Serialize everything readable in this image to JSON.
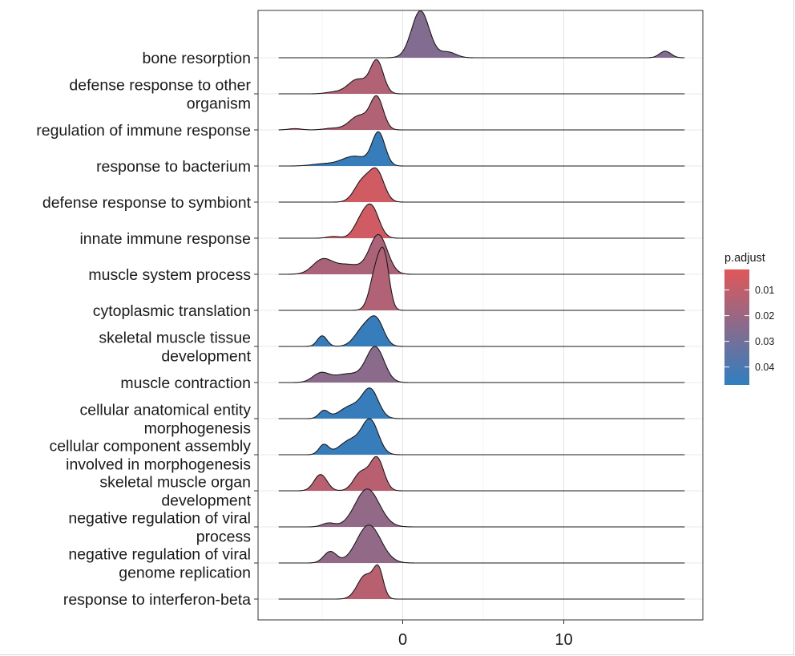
{
  "chart_data": {
    "type": "ridgeline",
    "xlim": [
      -8,
      18.5
    ],
    "x_ticks": [
      0,
      10
    ],
    "x_tick_labels": [
      "0",
      "10"
    ],
    "grid": true,
    "legend": {
      "title": "p.adjust",
      "position": "right",
      "domain": [
        0.002,
        0.047
      ],
      "ticks": [
        0.01,
        0.02,
        0.03,
        0.04
      ],
      "tick_labels": [
        "0.01",
        "0.02",
        "0.03",
        "0.04"
      ],
      "colors": [
        "#e15759",
        "#2f7fc1"
      ]
    },
    "series": [
      {
        "name": "response to interferon-beta",
        "label_lines": [
          "response to interferon-beta"
        ],
        "p_adjust": 0.012,
        "x_range": [
          -7.7,
          17.5
        ],
        "peak_scale": 0.95,
        "components": [
          [
            -2.3,
            0.5,
            0.9
          ],
          [
            -1.5,
            0.3,
            1.0
          ]
        ]
      },
      {
        "name": "negative regulation of viral genome replication",
        "label_lines": [
          "negative regulation of viral",
          "genome replication"
        ],
        "p_adjust": 0.022,
        "x_range": [
          -7.7,
          17.5
        ],
        "peak_scale": 1.05,
        "components": [
          [
            -4.5,
            0.4,
            0.3
          ],
          [
            -2.1,
            0.75,
            1.0
          ]
        ]
      },
      {
        "name": "negative regulation of viral process",
        "label_lines": [
          "negative regulation of viral",
          "process"
        ],
        "p_adjust": 0.022,
        "x_range": [
          -7.7,
          17.5
        ],
        "peak_scale": 1.05,
        "components": [
          [
            -4.6,
            0.4,
            0.1
          ],
          [
            -2.2,
            0.75,
            1.0
          ]
        ]
      },
      {
        "name": "skeletal muscle organ development",
        "label_lines": [
          "skeletal muscle organ",
          "development"
        ],
        "p_adjust": 0.012,
        "x_range": [
          -7.7,
          17.5
        ],
        "peak_scale": 0.95,
        "components": [
          [
            -5.1,
            0.4,
            0.5
          ],
          [
            -2.6,
            0.45,
            0.55
          ],
          [
            -1.6,
            0.42,
            1.0
          ]
        ]
      },
      {
        "name": "cellular component assembly involved in morphogenesis",
        "label_lines": [
          "cellular component assembly",
          "involved in morphogenesis"
        ],
        "p_adjust": 0.045,
        "x_range": [
          -7.7,
          17.5
        ],
        "peak_scale": 1.0,
        "components": [
          [
            -4.9,
            0.3,
            0.3
          ],
          [
            -3.2,
            0.7,
            0.45
          ],
          [
            -2.0,
            0.5,
            1.0
          ]
        ]
      },
      {
        "name": "cellular anatomical entity morphogenesis",
        "label_lines": [
          "cellular anatomical entity",
          "morphogenesis"
        ],
        "p_adjust": 0.045,
        "x_range": [
          -7.7,
          17.5
        ],
        "peak_scale": 0.85,
        "components": [
          [
            -4.9,
            0.3,
            0.28
          ],
          [
            -3.2,
            0.7,
            0.45
          ],
          [
            -2.0,
            0.5,
            1.0
          ]
        ]
      },
      {
        "name": "muscle contraction",
        "label_lines": [
          "muscle contraction"
        ],
        "p_adjust": 0.024,
        "x_range": [
          -7.7,
          17.5
        ],
        "peak_scale": 1.0,
        "components": [
          [
            -5.1,
            0.5,
            0.25
          ],
          [
            -3.4,
            0.9,
            0.25
          ],
          [
            -1.7,
            0.55,
            1.0
          ]
        ]
      },
      {
        "name": "skeletal muscle tissue development",
        "label_lines": [
          "skeletal muscle tissue",
          "development"
        ],
        "p_adjust": 0.045,
        "x_range": [
          -7.7,
          17.5
        ],
        "peak_scale": 0.85,
        "components": [
          [
            -5.0,
            0.3,
            0.35
          ],
          [
            -2.4,
            0.55,
            0.6
          ],
          [
            -1.6,
            0.45,
            0.75
          ]
        ]
      },
      {
        "name": "cytoplasmic translation",
        "label_lines": [
          "cytoplasmic translation"
        ],
        "p_adjust": 0.014,
        "x_range": [
          -7.7,
          17.5
        ],
        "peak_scale": 1.75,
        "components": [
          [
            -1.6,
            0.4,
            1.0
          ],
          [
            -1.1,
            0.3,
            0.9
          ]
        ]
      },
      {
        "name": "muscle system process",
        "label_lines": [
          "muscle system process"
        ],
        "p_adjust": 0.016,
        "x_range": [
          -7.7,
          17.5
        ],
        "peak_scale": 1.1,
        "components": [
          [
            -5.0,
            0.6,
            0.35
          ],
          [
            -3.4,
            0.9,
            0.25
          ],
          [
            -1.5,
            0.55,
            1.0
          ]
        ]
      },
      {
        "name": "innate immune response",
        "label_lines": [
          "innate immune response"
        ],
        "p_adjust": 0.006,
        "x_range": [
          -7.7,
          17.5
        ],
        "peak_scale": 0.95,
        "components": [
          [
            -4.3,
            0.4,
            0.06
          ],
          [
            -2.6,
            0.45,
            0.55
          ],
          [
            -1.9,
            0.45,
            1.0
          ]
        ]
      },
      {
        "name": "defense response to symbiont",
        "label_lines": [
          "defense response to symbiont"
        ],
        "p_adjust": 0.006,
        "x_range": [
          -7.7,
          17.5
        ],
        "peak_scale": 0.95,
        "components": [
          [
            -2.5,
            0.5,
            0.7
          ],
          [
            -1.6,
            0.45,
            1.0
          ]
        ]
      },
      {
        "name": "response to bacterium",
        "label_lines": [
          "response to bacterium"
        ],
        "p_adjust": 0.045,
        "x_range": [
          -7.7,
          17.5
        ],
        "peak_scale": 0.95,
        "components": [
          [
            -5.0,
            0.7,
            0.06
          ],
          [
            -3.0,
            0.8,
            0.3
          ],
          [
            -1.5,
            0.4,
            1.0
          ]
        ]
      },
      {
        "name": "regulation of immune response",
        "label_lines": [
          "regulation of immune response"
        ],
        "p_adjust": 0.014,
        "x_range": [
          -7.7,
          17.5
        ],
        "peak_scale": 0.95,
        "components": [
          [
            -6.7,
            0.4,
            0.04
          ],
          [
            -4.4,
            0.5,
            0.05
          ],
          [
            -2.7,
            0.6,
            0.45
          ],
          [
            -1.6,
            0.4,
            1.0
          ]
        ]
      },
      {
        "name": "defense response to other organism",
        "label_lines": [
          "defense response to other",
          "organism"
        ],
        "p_adjust": 0.014,
        "x_range": [
          -7.7,
          17.5
        ],
        "peak_scale": 0.95,
        "components": [
          [
            -4.3,
            0.5,
            0.05
          ],
          [
            -2.8,
            0.6,
            0.45
          ],
          [
            -1.6,
            0.4,
            1.0
          ]
        ]
      },
      {
        "name": "bone resorption",
        "label_lines": [
          "bone resorption"
        ],
        "p_adjust": 0.026,
        "x_range": [
          -7.7,
          17.5
        ],
        "peak_scale": 1.3,
        "components": [
          [
            1.1,
            0.55,
            1.0
          ],
          [
            2.8,
            0.5,
            0.12
          ],
          [
            16.3,
            0.35,
            0.14
          ]
        ]
      }
    ]
  }
}
